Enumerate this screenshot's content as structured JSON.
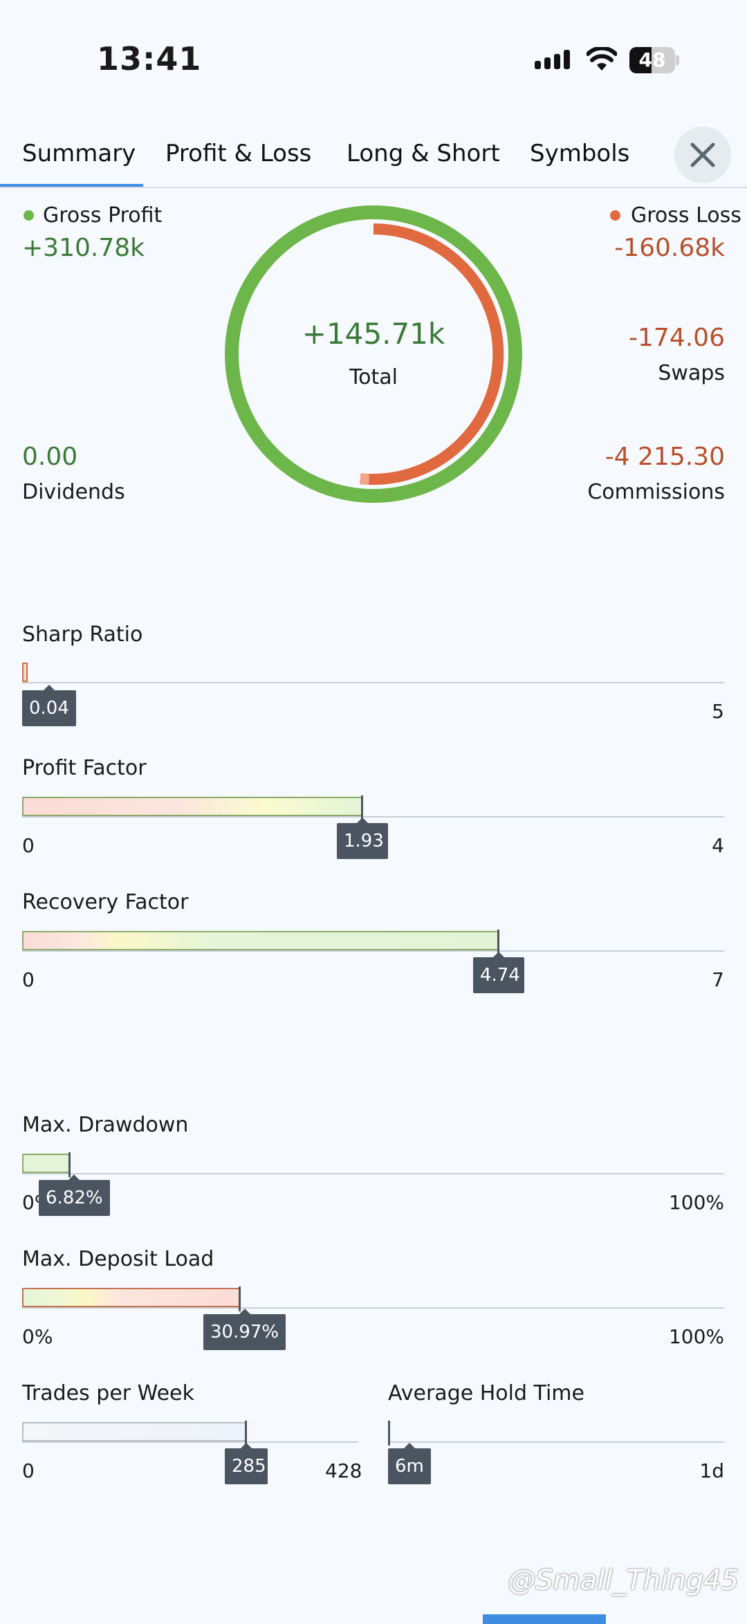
{
  "status_bar": {
    "time": "13:41",
    "battery": "48",
    "battery_level": 0.48
  },
  "tabs": [
    {
      "label": "Summary",
      "active": true
    },
    {
      "label": "Profit & Loss",
      "active": false
    },
    {
      "label": "Long & Short",
      "active": false
    },
    {
      "label": "Symbols",
      "active": false
    }
  ],
  "close_icon": "close-icon",
  "summary": {
    "gross_profit": {
      "label": "Gross Profit",
      "value": "+310.78k",
      "color": "#6db64a"
    },
    "gross_loss": {
      "label": "Gross Loss",
      "value": "-160.68k",
      "color": "#e0693f"
    },
    "total": {
      "value": "+145.71k",
      "label": "Total"
    },
    "swaps": {
      "value": "-174.06",
      "label": "Swaps"
    },
    "dividends": {
      "value": "0.00",
      "label": "Dividends"
    },
    "commissions": {
      "value": "-4 215.30",
      "label": "Commissions"
    }
  },
  "metrics": {
    "sharp_ratio": {
      "title": "Sharp Ratio",
      "value": "0.04",
      "min": "",
      "max": "5",
      "fraction": 0.008
    },
    "profit_factor": {
      "title": "Profit Factor",
      "value": "1.93",
      "min": "0",
      "max": "4",
      "fraction": 0.4825
    },
    "recovery_factor": {
      "title": "Recovery Factor",
      "value": "4.74",
      "min": "0",
      "max": "7",
      "fraction": 0.677
    },
    "max_drawdown": {
      "title": "Max. Drawdown",
      "value": "6.82%",
      "min": "0%",
      "max": "100%",
      "fraction": 0.0682
    },
    "max_deposit_load": {
      "title": "Max. Deposit Load",
      "value": "30.97%",
      "min": "0%",
      "max": "100%",
      "fraction": 0.3097
    },
    "trades_per_week": {
      "title": "Trades per Week",
      "value": "285",
      "min": "0",
      "max": "428",
      "fraction": 0.666
    },
    "average_hold_time": {
      "title": "Average Hold Time",
      "value": "6m",
      "min": "",
      "max": "1d",
      "fraction": 0.003
    }
  },
  "watermark": "@Small_Thing45"
}
